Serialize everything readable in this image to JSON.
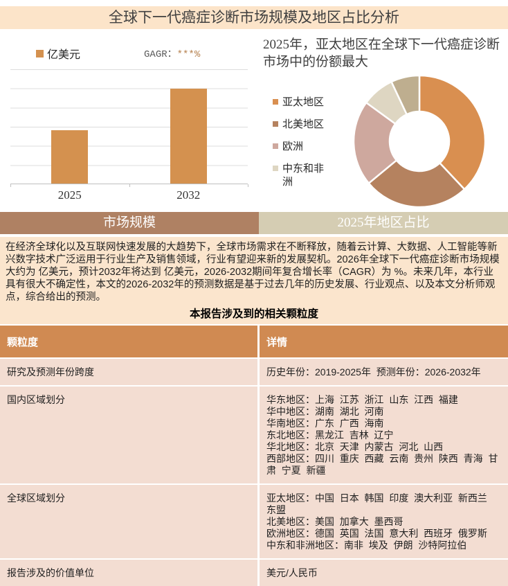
{
  "page_title": "全球下一代癌症诊断市场规模及地区占比分析",
  "bar_section": {
    "legend_label": "亿美元",
    "cagr_label": "GAGR：",
    "cagr_value": "***%"
  },
  "donut_section": {
    "title": "2025年，亚太地区在全球下一代癌症诊断市场中的份额最大"
  },
  "tabs": [
    {
      "label": "市场规模"
    },
    {
      "label": "2025年地区占比"
    }
  ],
  "paragraph": "在经济全球化以及互联网快速发展的大趋势下，全球市场需求在不断释放，随着云计算、大数据、人工智能等新兴数字技术广泛运用于行业生产及销售领域，行业有望迎来新的发展契机。2026年全球下一代癌症诊断市场规模大约为 亿美元，预计2032年将达到 亿美元，2026-2032期间年复合增长率（CAGR）为 %。未来几年，本行业具有很大不确定性，本文的2026-2032年的预测数据是基于过去几年的历史发展、行业观点、以及本文分析师观点，综合给出的预测。",
  "table_heading": "本报告涉及到的相关颗粒度",
  "table": {
    "headers": [
      "颗粒度",
      "详情"
    ],
    "rows": [
      {
        "label": "研究及预测年份跨度",
        "details": [
          "历史年份：2019-2025年  预测年份：2026-2032年"
        ]
      },
      {
        "label": "国内区域划分",
        "details": [
          "华东地区：上海  江苏  浙江  山东  江西  福建",
          "华中地区：湖南  湖北  河南",
          "华南地区：广东  广西  海南",
          "东北地区：黑龙江  吉林  辽宁",
          "华北地区：北京  天津  内蒙古  河北  山西",
          "西部地区：四川  重庆  西藏  云南  贵州  陕西  青海  甘肃  宁夏  新疆"
        ]
      },
      {
        "label": "全球区域划分",
        "details": [
          "亚太地区：中国  日本  韩国  印度  澳大利亚  新西兰  东盟",
          "北美地区：美国  加拿大  墨西哥",
          "欧洲地区：德国  英国  法国  意大利  西班牙  俄罗斯",
          "中东和非洲地区：南非  埃及  伊朗  沙特阿拉伯"
        ]
      },
      {
        "label": "报告涉及的价值单位",
        "details": [
          "美元/人民币"
        ]
      }
    ]
  },
  "colors": {
    "title_bar_bg": "#FCE4C9",
    "bar_fill": "#D4914F",
    "cagr_value_color": "#B5804E",
    "tab_active_bg": "#AF8163",
    "tab_inactive_bg": "#D5CDB3",
    "paragraph_bg": "#FBE5CD",
    "table_header_bg": "#D08A52",
    "table_row_bg": "#F3DDD2"
  },
  "chart_data": [
    {
      "type": "bar",
      "categories": [
        "2025",
        "2032"
      ],
      "values": [
        2.8,
        5.0
      ],
      "unit": "亿美元",
      "color": "#D4914F",
      "ylim": [
        0,
        6
      ],
      "grid": true,
      "y_tick_labels_visible": false,
      "data_labels_visible": false,
      "title": "市场规模"
    },
    {
      "type": "pie",
      "donut": true,
      "hole_ratio": 0.45,
      "title": "2025年，亚太地区在全球下一代癌症诊断市场中的份额最大",
      "labels": [
        "亚太地区",
        "北美地区",
        "欧洲",
        "中东和非洲",
        ""
      ],
      "values": [
        38,
        26,
        21,
        8,
        7
      ],
      "colors": [
        "#D98F50",
        "#B5825F",
        "#CEA89E",
        "#DED6C2",
        "#BEAE8F"
      ],
      "legend_position": "left",
      "values_estimated": true
    }
  ]
}
